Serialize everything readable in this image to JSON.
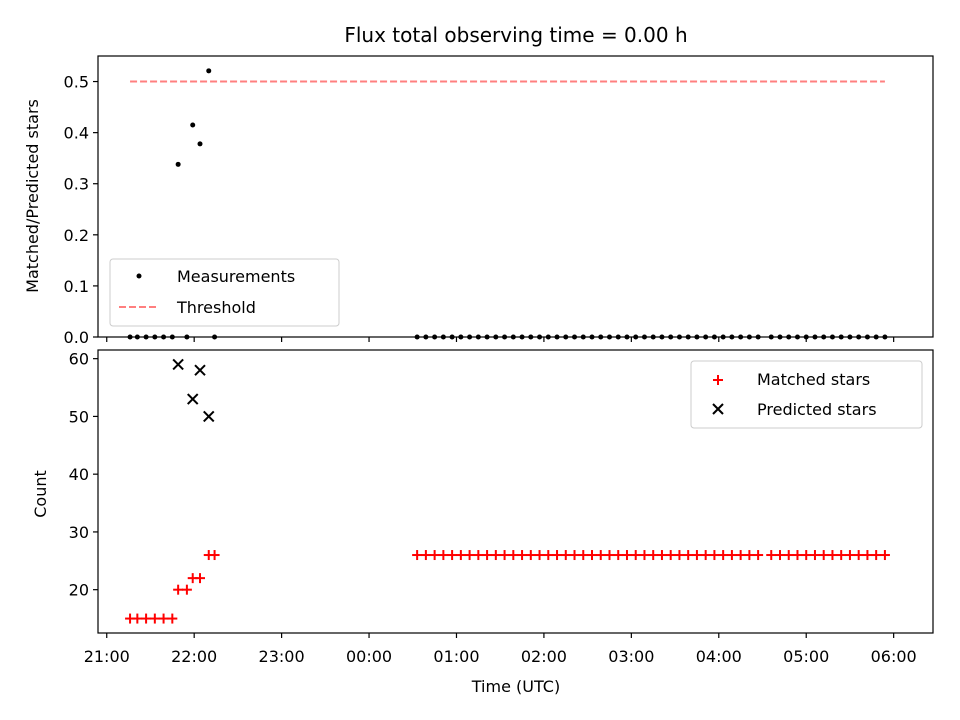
{
  "chart_data": [
    {
      "type": "scatter",
      "title": "Flux total observing time = 0.00 h",
      "xlabel": "",
      "ylabel": "Matched/Predicted stars",
      "ylim": [
        0,
        0.55
      ],
      "xlim": [
        "20:54",
        "06:27"
      ],
      "yticks": [
        "0.0",
        "0.1",
        "0.2",
        "0.3",
        "0.4",
        "0.5"
      ],
      "legend_position": "bottom-left",
      "series": [
        {
          "name": "Measurements",
          "kind": "scatter",
          "color": "#000000",
          "points": [
            {
              "x": "21:16",
              "y": 0
            },
            {
              "x": "21:21",
              "y": 0
            },
            {
              "x": "21:27",
              "y": 0
            },
            {
              "x": "21:33",
              "y": 0
            },
            {
              "x": "21:39",
              "y": 0
            },
            {
              "x": "21:45",
              "y": 0
            },
            {
              "x": "21:49",
              "y": 0.338
            },
            {
              "x": "21:55",
              "y": 0
            },
            {
              "x": "21:59",
              "y": 0.415
            },
            {
              "x": "22:04",
              "y": 0.378
            },
            {
              "x": "22:10",
              "y": 0.521
            },
            {
              "x": "22:14",
              "y": 0
            },
            {
              "x": "00:33",
              "y": 0
            },
            {
              "x": "00:39",
              "y": 0
            },
            {
              "x": "00:45",
              "y": 0
            },
            {
              "x": "00:51",
              "y": 0
            },
            {
              "x": "00:57",
              "y": 0
            },
            {
              "x": "01:03",
              "y": 0
            },
            {
              "x": "01:09",
              "y": 0
            },
            {
              "x": "01:15",
              "y": 0
            },
            {
              "x": "01:21",
              "y": 0
            },
            {
              "x": "01:27",
              "y": 0
            },
            {
              "x": "01:33",
              "y": 0
            },
            {
              "x": "01:39",
              "y": 0
            },
            {
              "x": "01:45",
              "y": 0
            },
            {
              "x": "01:51",
              "y": 0
            },
            {
              "x": "01:57",
              "y": 0
            },
            {
              "x": "02:03",
              "y": 0
            },
            {
              "x": "02:09",
              "y": 0
            },
            {
              "x": "02:15",
              "y": 0
            },
            {
              "x": "02:21",
              "y": 0
            },
            {
              "x": "02:27",
              "y": 0
            },
            {
              "x": "02:33",
              "y": 0
            },
            {
              "x": "02:39",
              "y": 0
            },
            {
              "x": "02:45",
              "y": 0
            },
            {
              "x": "02:51",
              "y": 0
            },
            {
              "x": "02:57",
              "y": 0
            },
            {
              "x": "03:03",
              "y": 0
            },
            {
              "x": "03:09",
              "y": 0
            },
            {
              "x": "03:15",
              "y": 0
            },
            {
              "x": "03:21",
              "y": 0
            },
            {
              "x": "03:27",
              "y": 0
            },
            {
              "x": "03:33",
              "y": 0
            },
            {
              "x": "03:39",
              "y": 0
            },
            {
              "x": "03:45",
              "y": 0
            },
            {
              "x": "03:51",
              "y": 0
            },
            {
              "x": "03:57",
              "y": 0
            },
            {
              "x": "04:03",
              "y": 0
            },
            {
              "x": "04:09",
              "y": 0
            },
            {
              "x": "04:15",
              "y": 0
            },
            {
              "x": "04:21",
              "y": 0
            },
            {
              "x": "04:27",
              "y": 0
            },
            {
              "x": "04:36",
              "y": 0
            },
            {
              "x": "04:42",
              "y": 0
            },
            {
              "x": "04:48",
              "y": 0
            },
            {
              "x": "04:54",
              "y": 0
            },
            {
              "x": "05:00",
              "y": 0
            },
            {
              "x": "05:06",
              "y": 0
            },
            {
              "x": "05:12",
              "y": 0
            },
            {
              "x": "05:18",
              "y": 0
            },
            {
              "x": "05:24",
              "y": 0
            },
            {
              "x": "05:30",
              "y": 0
            },
            {
              "x": "05:36",
              "y": 0
            },
            {
              "x": "05:42",
              "y": 0
            },
            {
              "x": "05:48",
              "y": 0
            },
            {
              "x": "05:54",
              "y": 0
            }
          ]
        },
        {
          "name": "Threshold",
          "kind": "dashed-line",
          "color": "#ff7f7f",
          "points": [
            {
              "x": "21:16",
              "y": 0.5
            },
            {
              "x": "05:54",
              "y": 0.5
            }
          ]
        }
      ]
    },
    {
      "type": "scatter",
      "title": "",
      "xlabel": "Time (UTC)",
      "ylabel": "Count",
      "ylim": [
        12.5,
        61.5
      ],
      "xlim": [
        "20:54",
        "06:27"
      ],
      "yticks": [
        "20",
        "30",
        "40",
        "50",
        "60"
      ],
      "xticks": [
        "21:00",
        "22:00",
        "23:00",
        "00:00",
        "01:00",
        "02:00",
        "03:00",
        "04:00",
        "05:00",
        "06:00"
      ],
      "legend_position": "top-right",
      "series": [
        {
          "name": "Matched stars",
          "kind": "plus",
          "color": "#ff0000",
          "points": [
            {
              "x": "21:16",
              "y": 15
            },
            {
              "x": "21:21",
              "y": 15
            },
            {
              "x": "21:27",
              "y": 15
            },
            {
              "x": "21:33",
              "y": 15
            },
            {
              "x": "21:39",
              "y": 15
            },
            {
              "x": "21:45",
              "y": 15
            },
            {
              "x": "21:49",
              "y": 20
            },
            {
              "x": "21:55",
              "y": 20
            },
            {
              "x": "21:59",
              "y": 22
            },
            {
              "x": "22:04",
              "y": 22
            },
            {
              "x": "22:10",
              "y": 26
            },
            {
              "x": "22:14",
              "y": 26
            },
            {
              "x": "00:33",
              "y": 26
            },
            {
              "x": "00:39",
              "y": 26
            },
            {
              "x": "00:45",
              "y": 26
            },
            {
              "x": "00:51",
              "y": 26
            },
            {
              "x": "00:57",
              "y": 26
            },
            {
              "x": "01:03",
              "y": 26
            },
            {
              "x": "01:09",
              "y": 26
            },
            {
              "x": "01:15",
              "y": 26
            },
            {
              "x": "01:21",
              "y": 26
            },
            {
              "x": "01:27",
              "y": 26
            },
            {
              "x": "01:33",
              "y": 26
            },
            {
              "x": "01:39",
              "y": 26
            },
            {
              "x": "01:45",
              "y": 26
            },
            {
              "x": "01:51",
              "y": 26
            },
            {
              "x": "01:57",
              "y": 26
            },
            {
              "x": "02:03",
              "y": 26
            },
            {
              "x": "02:09",
              "y": 26
            },
            {
              "x": "02:15",
              "y": 26
            },
            {
              "x": "02:21",
              "y": 26
            },
            {
              "x": "02:27",
              "y": 26
            },
            {
              "x": "02:33",
              "y": 26
            },
            {
              "x": "02:39",
              "y": 26
            },
            {
              "x": "02:45",
              "y": 26
            },
            {
              "x": "02:51",
              "y": 26
            },
            {
              "x": "02:57",
              "y": 26
            },
            {
              "x": "03:03",
              "y": 26
            },
            {
              "x": "03:09",
              "y": 26
            },
            {
              "x": "03:15",
              "y": 26
            },
            {
              "x": "03:21",
              "y": 26
            },
            {
              "x": "03:27",
              "y": 26
            },
            {
              "x": "03:33",
              "y": 26
            },
            {
              "x": "03:39",
              "y": 26
            },
            {
              "x": "03:45",
              "y": 26
            },
            {
              "x": "03:51",
              "y": 26
            },
            {
              "x": "03:57",
              "y": 26
            },
            {
              "x": "04:03",
              "y": 26
            },
            {
              "x": "04:09",
              "y": 26
            },
            {
              "x": "04:15",
              "y": 26
            },
            {
              "x": "04:21",
              "y": 26
            },
            {
              "x": "04:27",
              "y": 26
            },
            {
              "x": "04:36",
              "y": 26
            },
            {
              "x": "04:42",
              "y": 26
            },
            {
              "x": "04:48",
              "y": 26
            },
            {
              "x": "04:54",
              "y": 26
            },
            {
              "x": "05:00",
              "y": 26
            },
            {
              "x": "05:06",
              "y": 26
            },
            {
              "x": "05:12",
              "y": 26
            },
            {
              "x": "05:18",
              "y": 26
            },
            {
              "x": "05:24",
              "y": 26
            },
            {
              "x": "05:30",
              "y": 26
            },
            {
              "x": "05:36",
              "y": 26
            },
            {
              "x": "05:42",
              "y": 26
            },
            {
              "x": "05:48",
              "y": 26
            },
            {
              "x": "05:54",
              "y": 26
            }
          ]
        },
        {
          "name": "Predicted stars",
          "kind": "cross",
          "color": "#000000",
          "points": [
            {
              "x": "21:49",
              "y": 59
            },
            {
              "x": "21:59",
              "y": 53
            },
            {
              "x": "22:04",
              "y": 58
            },
            {
              "x": "22:10",
              "y": 50
            }
          ]
        }
      ]
    }
  ]
}
